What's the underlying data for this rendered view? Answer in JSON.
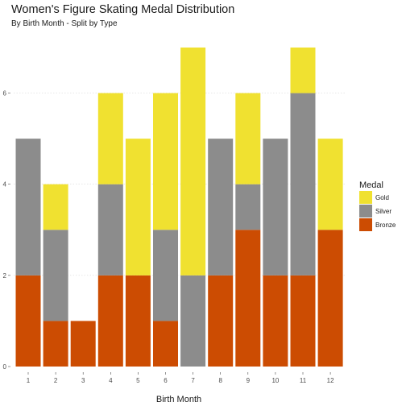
{
  "chart_data": {
    "type": "bar",
    "stacked": true,
    "title": "Women's Figure Skating Medal Distribution",
    "subtitle": "By Birth Month - Split by Type",
    "xlabel": "Birth Month",
    "ylabel": "",
    "categories": [
      "1",
      "2",
      "3",
      "4",
      "5",
      "6",
      "7",
      "8",
      "9",
      "10",
      "11",
      "12"
    ],
    "ylim": [
      0,
      7
    ],
    "yticks": [
      0,
      2,
      4,
      6
    ],
    "grid": "horizontal, dotted",
    "legend": {
      "title": "Medal",
      "placement": "right"
    },
    "series": [
      {
        "name": "Bronze",
        "color": "#CC4C02",
        "values": [
          2,
          1,
          1,
          2,
          2,
          1,
          0,
          2,
          3,
          2,
          2,
          3
        ]
      },
      {
        "name": "Silver",
        "color": "#8C8C8C",
        "values": [
          3,
          2,
          0,
          2,
          0,
          2,
          2,
          3,
          1,
          3,
          4,
          0
        ]
      },
      {
        "name": "Gold",
        "color": "#F0E130",
        "values": [
          0,
          1,
          0,
          2,
          3,
          3,
          5,
          0,
          2,
          0,
          1,
          2
        ]
      }
    ],
    "legend_order": [
      "Gold",
      "Silver",
      "Bronze"
    ]
  }
}
